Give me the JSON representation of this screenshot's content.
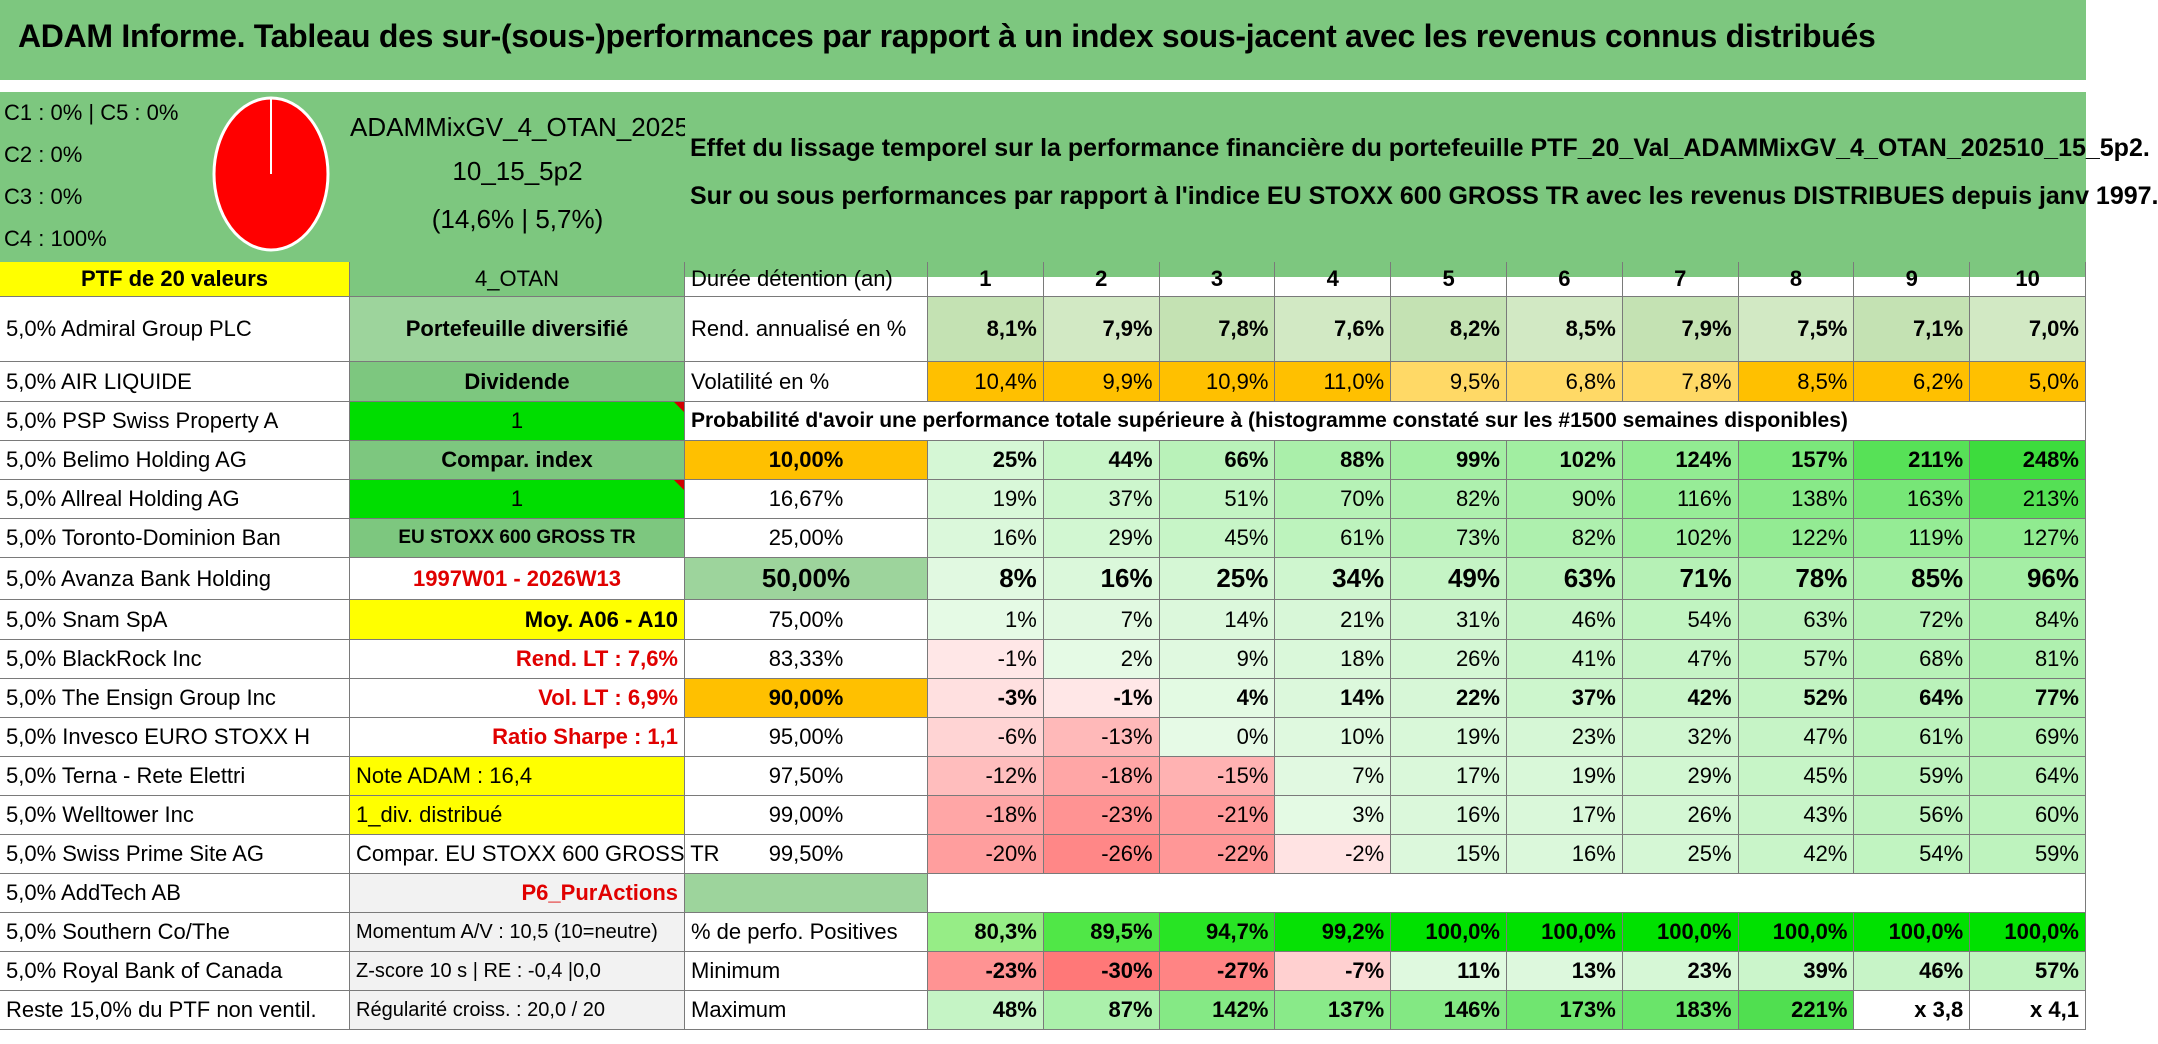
{
  "title": "ADAM Informe. Tableau des sur-(sous-)performances par rapport à un index sous-jacent avec les revenus connus distribués",
  "header": {
    "clusters": [
      "C1 : 0% | C5 : 0%",
      "C2 : 0%",
      "C3 : 0%",
      "C4 : 100%"
    ],
    "portfolio_name_1": "ADAMMixGV_4_OTAN_2025",
    "portfolio_name_2": "10_15_5p2",
    "portfolio_stats": "(14,6% | 5,7%)",
    "description_1": "Effet du lissage temporel sur la performance financière du portefeuille PTF_20_Val_ADAMMixGV_4_OTAN_202510_15_5p2.",
    "description_2": "Sur ou sous performances par rapport à l'indice EU STOXX 600 GROSS TR avec les revenus DISTRIBUES depuis janv 1997."
  },
  "colors": {
    "title_green": "#7dc77f",
    "highlight_yellow": "#ffff00",
    "orange": "#ffc000",
    "bright_green": "#00dd00",
    "pie_red": "#ff0000",
    "alert_red": "#e00000"
  },
  "ptf_header": "PTF de 20 valeurs",
  "holdings": [
    "5,0% Admiral Group PLC",
    "5,0% AIR LIQUIDE",
    "5,0% PSP Swiss Property A",
    "5,0% Belimo Holding AG",
    "5,0% Allreal Holding AG",
    "5,0% Toronto-Dominion Ban",
    "5,0% Avanza Bank Holding",
    "5,0% Snam SpA",
    "5,0% BlackRock Inc",
    "5,0% The Ensign Group Inc",
    "5,0% Invesco EURO STOXX H",
    "5,0% Terna - Rete Elettri",
    "5,0% Welltower Inc",
    "5,0% Swiss Prime Site AG",
    "5,0% AddTech AB",
    "5,0% Southern Co/The",
    "5,0% Royal Bank of Canada",
    "Reste 15,0% du PTF non ventil."
  ],
  "info": [
    "4_OTAN",
    "Portefeuille diversifié",
    "Dividende",
    "1",
    "Compar. index",
    "1",
    "EU STOXX 600 GROSS TR",
    "1997W01 - 2026W13",
    "Moy. A06 - A10",
    "Rend. LT : 7,6%",
    "Vol. LT : 6,9%",
    "Ratio Sharpe : 1,1",
    "Note ADAM : 16,4",
    "1_div. distribué",
    "Compar. EU STOXX 600 GROSS TR",
    "P6_PurActions",
    "Momentum A/V : 10,5 (10=neutre)",
    "Z-score 10 s | RE : -0,4 |0,0",
    "Régularité croiss. : 20,0 / 20"
  ],
  "table": {
    "holding_label": "Durée détention (an)",
    "years": [
      "1",
      "2",
      "3",
      "4",
      "5",
      "6",
      "7",
      "8",
      "9",
      "10"
    ],
    "rend_label": "Rend. annualisé en %",
    "rend": [
      "8,1%",
      "7,9%",
      "7,8%",
      "7,6%",
      "8,2%",
      "8,5%",
      "7,9%",
      "7,5%",
      "7,1%",
      "7,0%"
    ],
    "vol_label": "Volatilité en %",
    "vol": [
      "10,4%",
      "9,9%",
      "10,9%",
      "11,0%",
      "9,5%",
      "6,8%",
      "7,8%",
      "8,5%",
      "6,2%",
      "5,0%"
    ],
    "prob_header": "Probabilité d'avoir une performance totale supérieure à (histogramme constaté sur les #1500 semaines disponibles)",
    "quantiles": [
      {
        "p": "10,00%",
        "v": [
          "25%",
          "44%",
          "66%",
          "88%",
          "99%",
          "102%",
          "124%",
          "157%",
          "211%",
          "248%"
        ]
      },
      {
        "p": "16,67%",
        "v": [
          "19%",
          "37%",
          "51%",
          "70%",
          "82%",
          "90%",
          "116%",
          "138%",
          "163%",
          "213%"
        ]
      },
      {
        "p": "25,00%",
        "v": [
          "16%",
          "29%",
          "45%",
          "61%",
          "73%",
          "82%",
          "102%",
          "122%",
          "119%",
          "127%"
        ]
      },
      {
        "p": "50,00%",
        "v": [
          "8%",
          "16%",
          "25%",
          "34%",
          "49%",
          "63%",
          "71%",
          "78%",
          "85%",
          "96%"
        ]
      },
      {
        "p": "75,00%",
        "v": [
          "1%",
          "7%",
          "14%",
          "21%",
          "31%",
          "46%",
          "54%",
          "63%",
          "72%",
          "84%"
        ]
      },
      {
        "p": "83,33%",
        "v": [
          "-1%",
          "2%",
          "9%",
          "18%",
          "26%",
          "41%",
          "47%",
          "57%",
          "68%",
          "81%"
        ]
      },
      {
        "p": "90,00%",
        "v": [
          "-3%",
          "-1%",
          "4%",
          "14%",
          "22%",
          "37%",
          "42%",
          "52%",
          "64%",
          "77%"
        ]
      },
      {
        "p": "95,00%",
        "v": [
          "-6%",
          "-13%",
          "0%",
          "10%",
          "19%",
          "23%",
          "32%",
          "47%",
          "61%",
          "69%"
        ]
      },
      {
        "p": "97,50%",
        "v": [
          "-12%",
          "-18%",
          "-15%",
          "7%",
          "17%",
          "19%",
          "29%",
          "45%",
          "59%",
          "64%"
        ]
      },
      {
        "p": "99,00%",
        "v": [
          "-18%",
          "-23%",
          "-21%",
          "3%",
          "16%",
          "17%",
          "26%",
          "43%",
          "56%",
          "60%"
        ]
      },
      {
        "p": "99,50%",
        "v": [
          "-20%",
          "-26%",
          "-22%",
          "-2%",
          "15%",
          "16%",
          "25%",
          "42%",
          "54%",
          "59%"
        ]
      }
    ],
    "pos_label": "% de perfo. Positives",
    "pos": [
      "80,3%",
      "89,5%",
      "94,7%",
      "99,2%",
      "100,0%",
      "100,0%",
      "100,0%",
      "100,0%",
      "100,0%",
      "100,0%"
    ],
    "min_label": "Minimum",
    "min": [
      "-23%",
      "-30%",
      "-27%",
      "-7%",
      "11%",
      "13%",
      "23%",
      "39%",
      "46%",
      "57%"
    ],
    "max_label": "Maximum",
    "max": [
      "48%",
      "87%",
      "142%",
      "137%",
      "146%",
      "173%",
      "183%",
      "221%",
      "x 3,8",
      "x 4,1"
    ]
  }
}
